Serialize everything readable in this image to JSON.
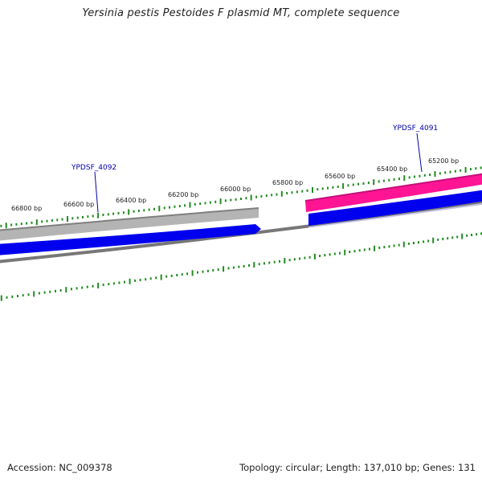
{
  "title": "Yersinia pestis Pestoides F plasmid MT, complete sequence",
  "footer": {
    "accession": "Accession: NC_009378",
    "summary": "Topology: circular; Length: 137,010 bp; Genes: 131"
  },
  "ruler": {
    "labels": [
      "66800 bp",
      "66600 bp",
      "66400 bp",
      "66200 bp",
      "66000 bp",
      "65800 bp",
      "65600 bp",
      "65400 bp",
      "65200 bp"
    ]
  },
  "genes": [
    {
      "label": "YPDSF_4092",
      "strand": "reverse"
    },
    {
      "label": "YPDSF_4091",
      "strand": "reverse"
    }
  ],
  "colors": {
    "tick": "#228b22",
    "cds": "#0000ee",
    "gene_grey": "#b4b4b4",
    "gene_pink": "#ff1493",
    "backbone": "#777777",
    "gene_label": "#0000aa"
  }
}
